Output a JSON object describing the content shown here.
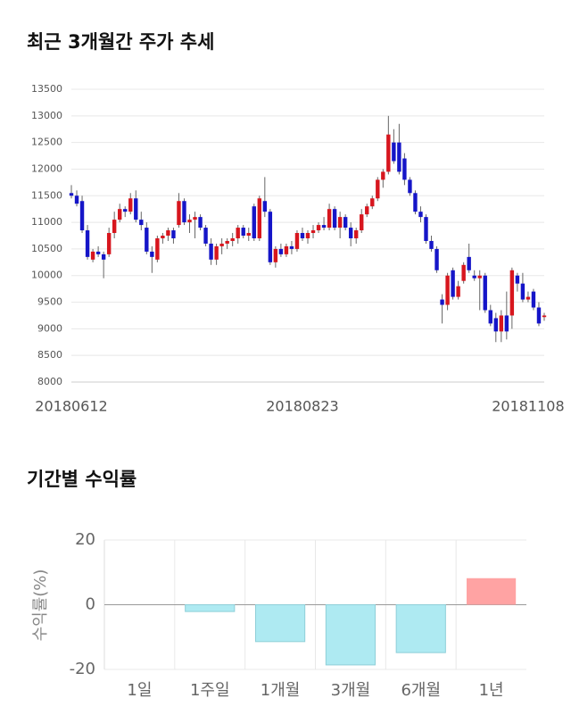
{
  "chart_data": [
    {
      "type": "candlestick",
      "title": "최근 3개월간 주가 추세",
      "categories": [
        "20180612",
        null,
        null,
        null,
        null,
        null,
        null,
        null,
        null,
        null,
        null,
        null,
        null,
        null,
        null,
        null,
        null,
        null,
        null,
        null,
        null,
        null,
        null,
        null,
        null,
        null,
        null,
        null,
        null,
        null,
        null,
        null,
        null,
        null,
        null,
        null,
        null,
        null,
        null,
        null,
        null,
        null,
        null,
        "20180823",
        null,
        null,
        null,
        null,
        null,
        null,
        null,
        null,
        null,
        null,
        null,
        null,
        null,
        null,
        null,
        null,
        null,
        null,
        null,
        null,
        null,
        null,
        null,
        null,
        null,
        null,
        null,
        null,
        null,
        null,
        null,
        null,
        null,
        null,
        null,
        null,
        null,
        null,
        null,
        null,
        null,
        "20181108",
        null,
        null,
        null
      ],
      "open": [
        11550,
        11500,
        11400,
        10850,
        10300,
        10450,
        10400,
        10400,
        10800,
        11050,
        11250,
        11200,
        11450,
        11050,
        10900,
        10450,
        10300,
        10700,
        10750,
        10850,
        10950,
        11400,
        11000,
        11050,
        11100,
        10900,
        10600,
        10300,
        10550,
        10600,
        10650,
        10700,
        10900,
        10750,
        11300,
        10700,
        11400,
        11200,
        10250,
        10500,
        10400,
        10550,
        10500,
        10800,
        10700,
        10800,
        10850,
        10950,
        10900,
        11250,
        10900,
        11100,
        10900,
        10700,
        10850,
        11150,
        11300,
        11450,
        11800,
        11950,
        12500,
        12500,
        12200,
        11800,
        11550,
        11200,
        11100,
        10650,
        10500,
        9550,
        9450,
        10100,
        9600,
        9900,
        10350,
        10000,
        9950,
        10000,
        9350,
        9200,
        8950,
        9250,
        9250,
        10000,
        9850,
        9550,
        9700,
        9400,
        9220
      ],
      "high": [
        11700,
        11600,
        11500,
        10950,
        10500,
        10550,
        10450,
        10900,
        11200,
        11350,
        11300,
        11550,
        11600,
        11200,
        11000,
        10550,
        10750,
        10800,
        10900,
        10900,
        11550,
        11450,
        11150,
        11200,
        11150,
        10950,
        10700,
        10600,
        10700,
        10700,
        10800,
        10950,
        10950,
        10900,
        11350,
        11500,
        11850,
        11250,
        10550,
        10600,
        10600,
        10650,
        10850,
        10900,
        10850,
        10950,
        11000,
        11100,
        11350,
        11300,
        11200,
        11150,
        11000,
        10900,
        11250,
        11350,
        11500,
        11850,
        12000,
        13000,
        12750,
        12850,
        12300,
        11850,
        11600,
        11300,
        11150,
        10750,
        10550,
        9650,
        10050,
        10150,
        9900,
        10250,
        10600,
        10100,
        10100,
        10050,
        9450,
        9300,
        9350,
        9700,
        10150,
        10050,
        10050,
        9700,
        9750,
        9500,
        9300
      ],
      "low": [
        11450,
        11300,
        10800,
        10300,
        10250,
        10350,
        9950,
        10350,
        10700,
        11000,
        11100,
        11150,
        11000,
        10850,
        10400,
        10050,
        10250,
        10600,
        10650,
        10600,
        10900,
        10950,
        10800,
        10700,
        10850,
        10550,
        10200,
        10200,
        10400,
        10500,
        10550,
        10600,
        10700,
        10650,
        10650,
        10650,
        11100,
        10200,
        10150,
        10350,
        10350,
        10400,
        10450,
        10650,
        10600,
        10700,
        10800,
        10850,
        10850,
        10850,
        10700,
        10850,
        10550,
        10600,
        10800,
        11100,
        11250,
        11400,
        11650,
        11900,
        12100,
        11900,
        11700,
        11500,
        11150,
        11000,
        10600,
        10450,
        10050,
        9100,
        9350,
        9550,
        9550,
        9850,
        10050,
        9900,
        9350,
        9300,
        9050,
        8750,
        8750,
        8800,
        9000,
        9700,
        9500,
        9500,
        9350,
        9050,
        9150
      ],
      "close": [
        11500,
        11350,
        10850,
        10350,
        10450,
        10400,
        10300,
        10800,
        11050,
        11250,
        11200,
        11450,
        11050,
        10950,
        10450,
        10350,
        10700,
        10750,
        10850,
        10700,
        11400,
        11000,
        11050,
        11100,
        10900,
        10600,
        10300,
        10550,
        10600,
        10650,
        10700,
        10900,
        10750,
        10800,
        10700,
        11450,
        11200,
        10250,
        10500,
        10400,
        10550,
        10500,
        10800,
        10700,
        10800,
        10850,
        10950,
        10900,
        11250,
        10900,
        11100,
        10900,
        10700,
        10850,
        11150,
        11300,
        11450,
        11800,
        11950,
        12650,
        12150,
        11950,
        11800,
        11550,
        11200,
        11100,
        10650,
        10500,
        10100,
        9450,
        10000,
        9600,
        9800,
        10200,
        10100,
        9950,
        10000,
        9350,
        9100,
        8950,
        9250,
        8950,
        10100,
        9850,
        9550,
        9600,
        9400,
        9100,
        9250
      ],
      "up_color": "#d7161e",
      "down_color": "#1515c8",
      "wick_color": "#666666",
      "ylim": [
        8000,
        13500
      ],
      "yticks": [
        8000,
        8500,
        9000,
        9500,
        10000,
        10500,
        11000,
        11500,
        12000,
        12500,
        13000,
        13500
      ],
      "grid": true
    },
    {
      "type": "bar",
      "title": "기간별 수익률",
      "ylabel": "수익률(%)",
      "categories": [
        "1일",
        "1주일",
        "1개월",
        "3개월",
        "6개월",
        "1년"
      ],
      "values": [
        0,
        -2.1,
        -11.4,
        -18.6,
        -14.8,
        8.2
      ],
      "up_color": "#ffa3a3",
      "down_color": "#aeeaf2",
      "down_stroke": "#8fcfd8",
      "ylim": [
        -20,
        20
      ],
      "yticks": [
        -20,
        0,
        20
      ],
      "grid": true
    }
  ]
}
